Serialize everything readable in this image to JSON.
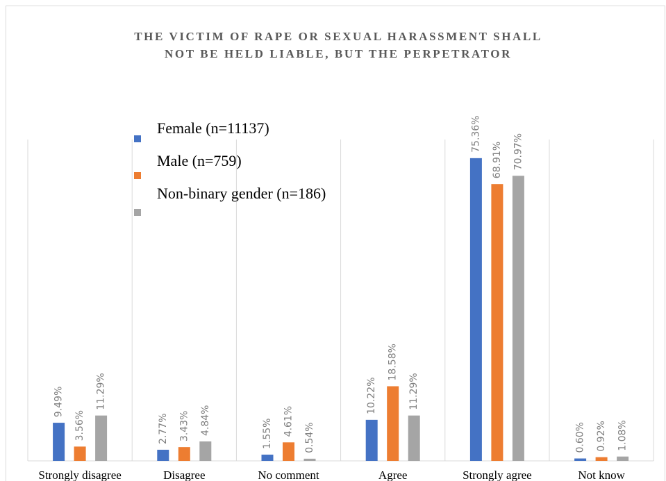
{
  "chart_data": {
    "type": "bar",
    "title": [
      "THE VICTIM OF RAPE OR SEXUAL HARASSMENT SHALL",
      "NOT BE HELD LIABLE, BUT THE PERPETRATOR"
    ],
    "categories": [
      "Strongly disagree",
      "Disagree",
      "No comment",
      "Agree",
      "Strongly agree",
      "Not know"
    ],
    "series": [
      {
        "name": "Female (n=11137)",
        "color": "#4472c4",
        "values": [
          9.49,
          2.77,
          1.55,
          10.22,
          75.36,
          0.6
        ],
        "value_labels": [
          "9.49%",
          "2.77%",
          "1.55%",
          "10.22%",
          "75.36%",
          "0.60%"
        ]
      },
      {
        "name": "Male (n=759)",
        "color": "#ed7d31",
        "values": [
          3.56,
          3.43,
          4.61,
          18.58,
          68.91,
          0.92
        ],
        "value_labels": [
          "3.56%",
          "3.43%",
          "4.61%",
          "18.58%",
          "68.91%",
          "0.92%"
        ]
      },
      {
        "name": "Non-binary gender (n=186)",
        "color": "#a5a5a5",
        "values": [
          11.29,
          4.84,
          0.54,
          11.29,
          70.97,
          1.08
        ],
        "value_labels": [
          "11.29%",
          "4.84%",
          "0.54%",
          "11.29%",
          "70.97%",
          "1.08%"
        ]
      }
    ],
    "ylim": [
      0,
      80
    ],
    "legend": "top-left"
  }
}
